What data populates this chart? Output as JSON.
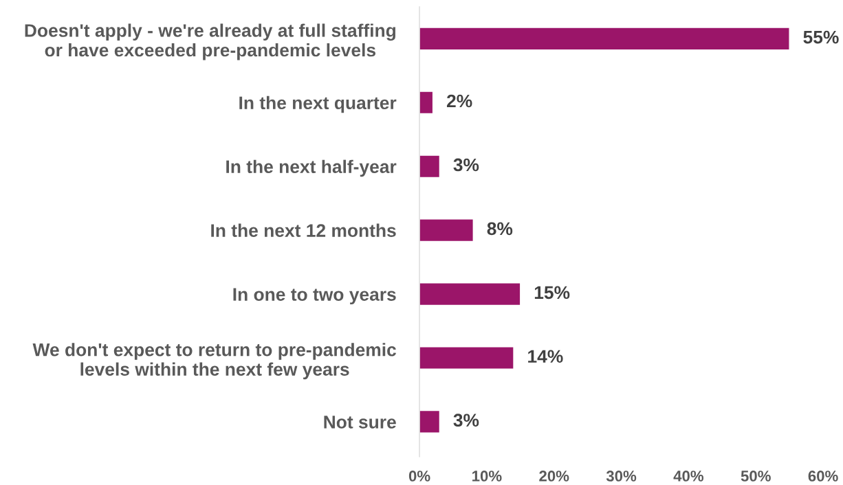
{
  "chart_data": {
    "type": "bar",
    "orientation": "horizontal",
    "categories": [
      "Doesn't apply - we're already at full staffing\nor have exceeded pre-pandemic levels",
      "In the next quarter",
      "In the next half-year",
      "In the next 12 months",
      "In one to two years",
      "We don't expect to return to pre-pandemic\nlevels within the next few years",
      "Not sure"
    ],
    "values": [
      55,
      2,
      3,
      8,
      15,
      14,
      3
    ],
    "value_labels": [
      "55%",
      "2%",
      "3%",
      "8%",
      "15%",
      "14%",
      "3%"
    ],
    "color": "#9b1569",
    "xlim": [
      0,
      60
    ],
    "xticks": [
      {
        "value": 0,
        "label": "0%"
      },
      {
        "value": 10,
        "label": "10%"
      },
      {
        "value": 20,
        "label": "20%"
      },
      {
        "value": 30,
        "label": "30%"
      },
      {
        "value": 40,
        "label": "40%"
      },
      {
        "value": 50,
        "label": "50%"
      },
      {
        "value": 60,
        "label": "60%"
      }
    ],
    "grid": false,
    "legend": false
  }
}
